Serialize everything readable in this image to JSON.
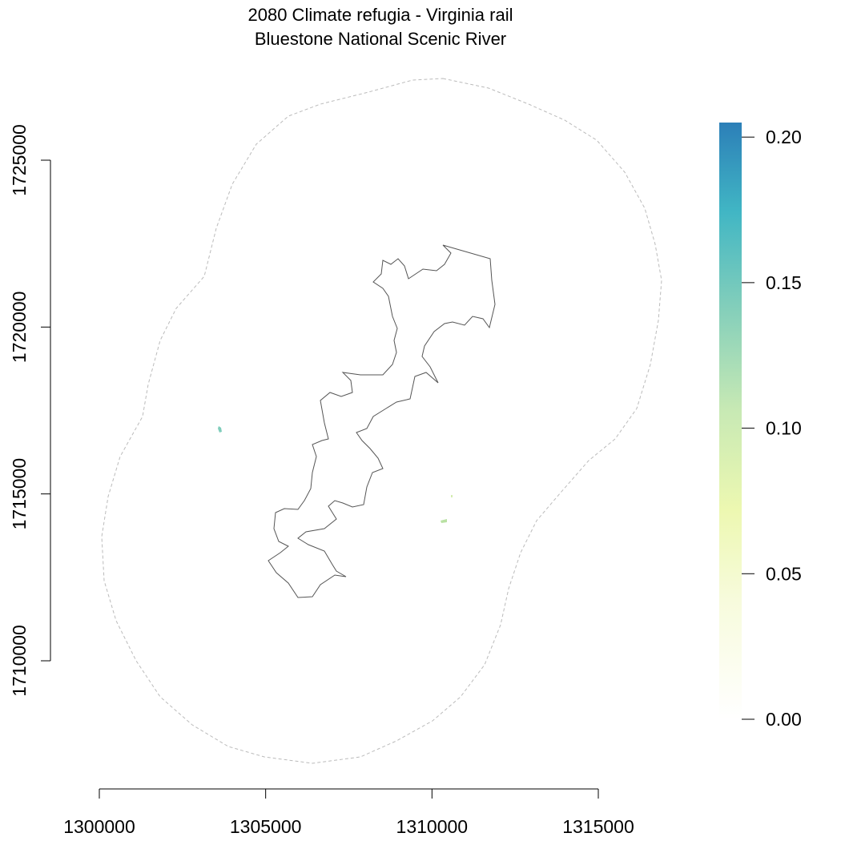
{
  "map": {
    "title_line1": "2080 Climate refugia - Virginia rail",
    "title_line2": "Bluestone National Scenic River",
    "x_axis": {
      "ticks": [
        {
          "value": 1300000,
          "label": "1300000"
        },
        {
          "value": 1305000,
          "label": "1305000"
        },
        {
          "value": 1310000,
          "label": "1310000"
        },
        {
          "value": 1315000,
          "label": "1315000"
        }
      ]
    },
    "y_axis": {
      "ticks": [
        {
          "value": 1710000,
          "label": "1710000"
        },
        {
          "value": 1715000,
          "label": "1715000"
        },
        {
          "value": 1720000,
          "label": "1720000"
        },
        {
          "value": 1725000,
          "label": "1725000"
        }
      ]
    },
    "legend": {
      "placement": "right",
      "ticks": [
        {
          "value": 0.0,
          "label": "0.00"
        },
        {
          "value": 0.05,
          "label": "0.05"
        },
        {
          "value": 0.1,
          "label": "0.10"
        },
        {
          "value": 0.15,
          "label": "0.15"
        },
        {
          "value": 0.2,
          "label": "0.20"
        }
      ],
      "range": [
        0.0,
        0.205
      ],
      "colors": [
        "#ffffff",
        "#f7fbdc",
        "#edf8b1",
        "#c7e9b4",
        "#7fcdbb",
        "#41b6c4",
        "#2c7fb8"
      ]
    },
    "park_boundary_color": "#555555",
    "buffer_boundary_color": "#bbbbbb",
    "refugia_patches": [
      {
        "x": 1303550,
        "y": 1716950,
        "value": 0.16
      },
      {
        "x": 1310350,
        "y": 1714150,
        "value": 0.1
      },
      {
        "x": 1310600,
        "y": 1714900,
        "value": 0.08
      }
    ]
  }
}
